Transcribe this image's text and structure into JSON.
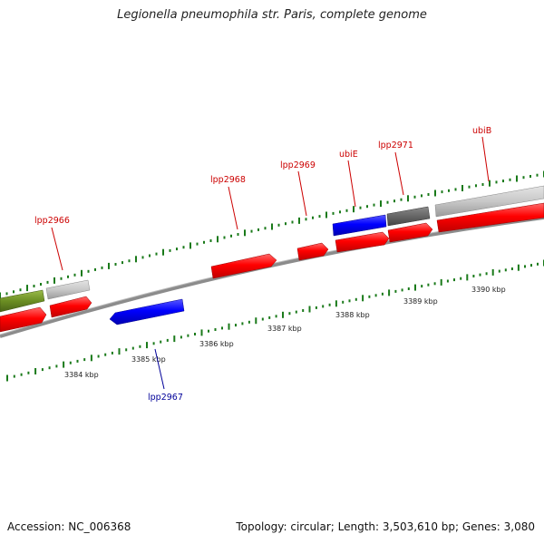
{
  "title": "Legionella pneumophila str. Paris, complete genome",
  "footer": {
    "accession": "Accession: NC_006368",
    "topology": "Topology: circular; Length: 3,503,610 bp; Genes: 3,080"
  },
  "colors": {
    "forward_cds": "#ff0000",
    "reverse_cds": "#0000ff",
    "forward_label": "#cc0000",
    "reverse_label": "#000099",
    "tick": "#1a7a1a",
    "backbone": "#8c8c8c",
    "olive_gene": "#6b8e23",
    "light_gray_gene": "#c8c8c8",
    "dark_gray_gene": "#666666"
  },
  "scale": {
    "unit": "kbp",
    "tick_labels": [
      "3384 kbp",
      "3385 kbp",
      "3386 kbp",
      "3387 kbp",
      "3388 kbp",
      "3389 kbp",
      "3390 kbp"
    ]
  },
  "features": [
    {
      "label": "lpp2966",
      "strand": "forward"
    },
    {
      "label": "lpp2967",
      "strand": "reverse"
    },
    {
      "label": "lpp2968",
      "strand": "forward"
    },
    {
      "label": "lpp2969",
      "strand": "forward"
    },
    {
      "label": "ubiE",
      "strand": "forward"
    },
    {
      "label": "lpp2971",
      "strand": "forward"
    },
    {
      "label": "ubiB",
      "strand": "forward"
    }
  ]
}
